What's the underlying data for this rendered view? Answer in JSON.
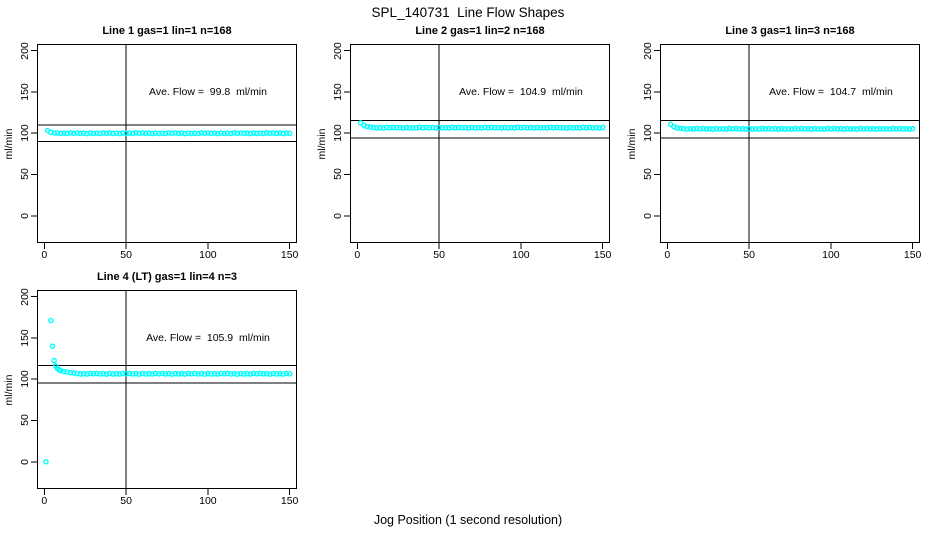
{
  "title": "SPL_140731  Line Flow Shapes",
  "xlabel": "Jog Position (1 second resolution)",
  "ylabel": "ml/min",
  "colors": {
    "points": "#00FFFF",
    "axis": "#000000",
    "background": "#FFFFFF",
    "text": "#000000"
  },
  "chart_data": [
    {
      "type": "scatter",
      "title": "Line 1 gas=1 lin=1 n=168",
      "annotation": "Ave. Flow =  99.8  ml/min",
      "ave_flow": 99.8,
      "n": 168,
      "xlim": [
        -4.5,
        154.5
      ],
      "ylim": [
        -33,
        208
      ],
      "x_ticks": [
        0,
        50,
        100,
        150
      ],
      "y_ticks": [
        0,
        50,
        100,
        150,
        200
      ],
      "vline_x": 50,
      "hlines_y": [
        109.8,
        89.8
      ],
      "points": [
        [
          2,
          103.2
        ],
        [
          4,
          100.9
        ],
        [
          6,
          100.3
        ],
        [
          8,
          100.2
        ],
        [
          10,
          99.7
        ],
        [
          12,
          100
        ],
        [
          14,
          99.6
        ],
        [
          16,
          100.4
        ],
        [
          18,
          99.9
        ],
        [
          20,
          100.3
        ],
        [
          22,
          99.8
        ],
        [
          24,
          100.1
        ],
        [
          26,
          99.5
        ],
        [
          28,
          100.2
        ],
        [
          30,
          99.7
        ],
        [
          32,
          100
        ],
        [
          34,
          99.6
        ],
        [
          36,
          100.4
        ],
        [
          38,
          99.9
        ],
        [
          40,
          100.3
        ],
        [
          42,
          99.8
        ],
        [
          44,
          100.1
        ],
        [
          46,
          99.5
        ],
        [
          48,
          100.2
        ],
        [
          50,
          99.7
        ],
        [
          52,
          100
        ],
        [
          54,
          99.6
        ],
        [
          56,
          100.4
        ],
        [
          58,
          99.9
        ],
        [
          60,
          100.3
        ],
        [
          62,
          99.8
        ],
        [
          64,
          100.1
        ],
        [
          66,
          99.5
        ],
        [
          68,
          100.2
        ],
        [
          70,
          99.7
        ],
        [
          72,
          100
        ],
        [
          74,
          99.6
        ],
        [
          76,
          100.4
        ],
        [
          78,
          99.9
        ],
        [
          80,
          100.3
        ],
        [
          82,
          99.8
        ],
        [
          84,
          100.1
        ],
        [
          86,
          99.5
        ],
        [
          88,
          100.2
        ],
        [
          90,
          99.7
        ],
        [
          92,
          100
        ],
        [
          94,
          99.6
        ],
        [
          96,
          100.4
        ],
        [
          98,
          99.9
        ],
        [
          100,
          100.3
        ],
        [
          102,
          99.8
        ],
        [
          104,
          100.1
        ],
        [
          106,
          99.5
        ],
        [
          108,
          100.2
        ],
        [
          110,
          99.7
        ],
        [
          112,
          100
        ],
        [
          114,
          99.6
        ],
        [
          116,
          100.4
        ],
        [
          118,
          99.9
        ],
        [
          120,
          100.3
        ],
        [
          122,
          99.8
        ],
        [
          124,
          100.1
        ],
        [
          126,
          99.5
        ],
        [
          128,
          100.2
        ],
        [
          130,
          99.7
        ],
        [
          132,
          100
        ],
        [
          134,
          99.6
        ],
        [
          136,
          100.4
        ],
        [
          138,
          99.9
        ],
        [
          140,
          100.3
        ],
        [
          142,
          99.8
        ],
        [
          144,
          100.1
        ],
        [
          146,
          99.5
        ],
        [
          148,
          100.2
        ],
        [
          150,
          99.7
        ]
      ]
    },
    {
      "type": "scatter",
      "title": "Line 2 gas=1 lin=2 n=168",
      "annotation": "Ave. Flow =  104.9  ml/min",
      "ave_flow": 104.9,
      "n": 168,
      "xlim": [
        -4.5,
        154.5
      ],
      "ylim": [
        -33,
        208
      ],
      "x_ticks": [
        0,
        50,
        100,
        150
      ],
      "y_ticks": [
        0,
        50,
        100,
        150,
        200
      ],
      "vline_x": 50,
      "hlines_y": [
        115.4,
        94.4
      ],
      "points": [
        [
          2,
          112.4
        ],
        [
          4,
          109.4
        ],
        [
          6,
          108.1
        ],
        [
          8,
          107.4
        ],
        [
          10,
          106.9
        ],
        [
          12,
          106.4
        ],
        [
          14,
          106.7
        ],
        [
          16,
          106.3
        ],
        [
          18,
          107.1
        ],
        [
          20,
          106.6
        ],
        [
          22,
          107
        ],
        [
          24,
          106.5
        ],
        [
          26,
          106.8
        ],
        [
          28,
          106.2
        ],
        [
          30,
          106.9
        ],
        [
          32,
          106.4
        ],
        [
          34,
          106.7
        ],
        [
          36,
          106.3
        ],
        [
          38,
          107.1
        ],
        [
          40,
          106.6
        ],
        [
          42,
          107
        ],
        [
          44,
          106.5
        ],
        [
          46,
          106.8
        ],
        [
          48,
          106.2
        ],
        [
          50,
          106.9
        ],
        [
          52,
          106.4
        ],
        [
          54,
          106.7
        ],
        [
          56,
          106.3
        ],
        [
          58,
          107.1
        ],
        [
          60,
          106.6
        ],
        [
          62,
          107
        ],
        [
          64,
          106.5
        ],
        [
          66,
          106.8
        ],
        [
          68,
          106.2
        ],
        [
          70,
          106.9
        ],
        [
          72,
          106.4
        ],
        [
          74,
          106.7
        ],
        [
          76,
          106.3
        ],
        [
          78,
          107.1
        ],
        [
          80,
          106.6
        ],
        [
          82,
          107
        ],
        [
          84,
          106.5
        ],
        [
          86,
          106.8
        ],
        [
          88,
          106.2
        ],
        [
          90,
          106.9
        ],
        [
          92,
          106.4
        ],
        [
          94,
          106.7
        ],
        [
          96,
          106.3
        ],
        [
          98,
          107.1
        ],
        [
          100,
          106.6
        ],
        [
          102,
          107
        ],
        [
          104,
          106.5
        ],
        [
          106,
          106.8
        ],
        [
          108,
          106.2
        ],
        [
          110,
          106.9
        ],
        [
          112,
          106.4
        ],
        [
          114,
          106.7
        ],
        [
          116,
          106.3
        ],
        [
          118,
          107.1
        ],
        [
          120,
          106.6
        ],
        [
          122,
          107
        ],
        [
          124,
          106.5
        ],
        [
          126,
          106.8
        ],
        [
          128,
          106.2
        ],
        [
          130,
          106.9
        ],
        [
          132,
          106.4
        ],
        [
          134,
          106.7
        ],
        [
          136,
          106.3
        ],
        [
          138,
          107.1
        ],
        [
          140,
          106.6
        ],
        [
          142,
          107
        ],
        [
          144,
          106.5
        ],
        [
          146,
          106.8
        ],
        [
          148,
          106.2
        ],
        [
          150,
          106.9
        ]
      ]
    },
    {
      "type": "scatter",
      "title": "Line 3 gas=1 lin=3 n=168",
      "annotation": "Ave. Flow =  104.7  ml/min",
      "ave_flow": 104.7,
      "n": 168,
      "xlim": [
        -4.5,
        154.5
      ],
      "ylim": [
        -33,
        208
      ],
      "x_ticks": [
        0,
        50,
        100,
        150
      ],
      "y_ticks": [
        0,
        50,
        100,
        150,
        200
      ],
      "vline_x": 50,
      "hlines_y": [
        115.2,
        94.2
      ],
      "points": [
        [
          2,
          110.6
        ],
        [
          4,
          107.7
        ],
        [
          6,
          106.3
        ],
        [
          8,
          105.7
        ],
        [
          10,
          105.5
        ],
        [
          12,
          105
        ],
        [
          14,
          105.3
        ],
        [
          16,
          104.9
        ],
        [
          18,
          105.7
        ],
        [
          20,
          105.2
        ],
        [
          22,
          105.6
        ],
        [
          24,
          105.1
        ],
        [
          26,
          105.4
        ],
        [
          28,
          104.8
        ],
        [
          30,
          105.5
        ],
        [
          32,
          105
        ],
        [
          34,
          105.3
        ],
        [
          36,
          104.9
        ],
        [
          38,
          105.7
        ],
        [
          40,
          105.2
        ],
        [
          42,
          105.6
        ],
        [
          44,
          105.1
        ],
        [
          46,
          105.4
        ],
        [
          48,
          104.8
        ],
        [
          50,
          105.5
        ],
        [
          52,
          105
        ],
        [
          54,
          105.3
        ],
        [
          56,
          104.9
        ],
        [
          58,
          105.7
        ],
        [
          60,
          105.2
        ],
        [
          62,
          105.6
        ],
        [
          64,
          105.1
        ],
        [
          66,
          105.4
        ],
        [
          68,
          104.8
        ],
        [
          70,
          105.5
        ],
        [
          72,
          105
        ],
        [
          74,
          105.3
        ],
        [
          76,
          104.9
        ],
        [
          78,
          105.7
        ],
        [
          80,
          105.2
        ],
        [
          82,
          105.6
        ],
        [
          84,
          105.1
        ],
        [
          86,
          105.4
        ],
        [
          88,
          104.8
        ],
        [
          90,
          105.5
        ],
        [
          92,
          105
        ],
        [
          94,
          105.3
        ],
        [
          96,
          104.9
        ],
        [
          98,
          105.7
        ],
        [
          100,
          105.2
        ],
        [
          102,
          105.6
        ],
        [
          104,
          105.1
        ],
        [
          106,
          105.4
        ],
        [
          108,
          104.8
        ],
        [
          110,
          105.5
        ],
        [
          112,
          105
        ],
        [
          114,
          105.3
        ],
        [
          116,
          104.9
        ],
        [
          118,
          105.7
        ],
        [
          120,
          105.2
        ],
        [
          122,
          105.6
        ],
        [
          124,
          105.1
        ],
        [
          126,
          105.4
        ],
        [
          128,
          104.8
        ],
        [
          130,
          105.5
        ],
        [
          132,
          105
        ],
        [
          134,
          105.3
        ],
        [
          136,
          104.9
        ],
        [
          138,
          105.7
        ],
        [
          140,
          105.2
        ],
        [
          142,
          105.6
        ],
        [
          144,
          105.1
        ],
        [
          146,
          105.4
        ],
        [
          148,
          104.8
        ],
        [
          150,
          105.5
        ]
      ]
    },
    {
      "type": "scatter",
      "title": "Line 4 (LT) gas=1 lin=4 n=3",
      "annotation": "Ave. Flow =  105.9  ml/min",
      "ave_flow": 105.9,
      "n": 3,
      "xlim": [
        -4.5,
        154.5
      ],
      "ylim": [
        -33,
        208
      ],
      "x_ticks": [
        0,
        50,
        100,
        150
      ],
      "y_ticks": [
        0,
        50,
        100,
        150,
        200
      ],
      "vline_x": 50,
      "hlines_y": [
        116.5,
        95.3
      ],
      "points": [
        [
          1,
          0
        ],
        [
          4,
          171
        ],
        [
          5,
          140
        ],
        [
          6,
          122.5
        ],
        [
          7,
          116
        ],
        [
          8,
          113
        ],
        [
          9,
          111.4
        ],
        [
          10,
          110.4
        ],
        [
          12,
          109.3
        ],
        [
          14,
          108.5
        ],
        [
          16,
          107.9
        ],
        [
          18,
          107.4
        ],
        [
          20,
          106.8
        ],
        [
          22,
          106.3
        ],
        [
          24,
          106.6
        ],
        [
          26,
          106.2
        ],
        [
          28,
          107
        ],
        [
          30,
          106.5
        ],
        [
          32,
          106.9
        ],
        [
          34,
          106.4
        ],
        [
          36,
          106.7
        ],
        [
          38,
          106.1
        ],
        [
          40,
          106.8
        ],
        [
          42,
          106.3
        ],
        [
          44,
          106.6
        ],
        [
          46,
          106.2
        ],
        [
          48,
          107
        ],
        [
          50,
          106.5
        ],
        [
          52,
          106.9
        ],
        [
          54,
          106.4
        ],
        [
          56,
          106.7
        ],
        [
          58,
          106.1
        ],
        [
          60,
          106.8
        ],
        [
          62,
          106.3
        ],
        [
          64,
          106.6
        ],
        [
          66,
          106.2
        ],
        [
          68,
          107
        ],
        [
          70,
          106.5
        ],
        [
          72,
          106.9
        ],
        [
          74,
          106.4
        ],
        [
          76,
          106.7
        ],
        [
          78,
          106.1
        ],
        [
          80,
          106.8
        ],
        [
          82,
          106.3
        ],
        [
          84,
          106.6
        ],
        [
          86,
          106.2
        ],
        [
          88,
          107
        ],
        [
          90,
          106.5
        ],
        [
          92,
          106.9
        ],
        [
          94,
          106.4
        ],
        [
          96,
          106.7
        ],
        [
          98,
          106.1
        ],
        [
          100,
          106.8
        ],
        [
          102,
          106.3
        ],
        [
          104,
          106.6
        ],
        [
          106,
          106.2
        ],
        [
          108,
          107
        ],
        [
          110,
          106.5
        ],
        [
          112,
          106.9
        ],
        [
          114,
          106.4
        ],
        [
          116,
          106.7
        ],
        [
          118,
          106.1
        ],
        [
          120,
          106.8
        ],
        [
          122,
          106.3
        ],
        [
          124,
          106.6
        ],
        [
          126,
          106.2
        ],
        [
          128,
          107
        ],
        [
          130,
          106.5
        ],
        [
          132,
          106.9
        ],
        [
          134,
          106.4
        ],
        [
          136,
          106.7
        ],
        [
          138,
          106.1
        ],
        [
          140,
          106.8
        ],
        [
          142,
          106.3
        ],
        [
          144,
          106.6
        ],
        [
          146,
          106.2
        ],
        [
          148,
          107
        ],
        [
          150,
          106.5
        ]
      ]
    }
  ]
}
